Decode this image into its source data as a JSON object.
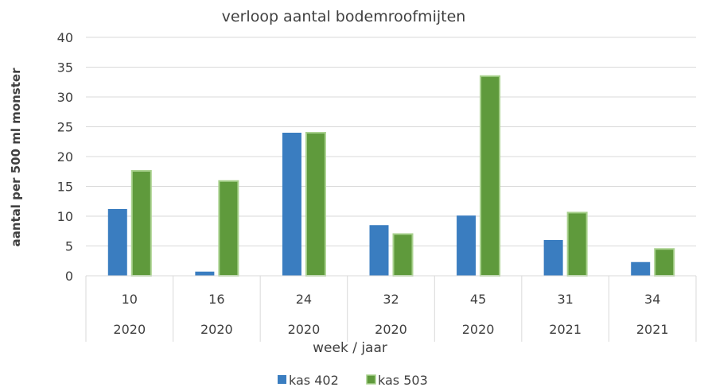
{
  "chart_data": {
    "type": "bar",
    "title": "verloop aantal bodemroofmijten",
    "xlabel": "week / jaar",
    "ylabel": "aantal per 500 ml monster",
    "ylim": [
      0,
      40
    ],
    "yticks": [
      "0",
      "5",
      "10",
      "15",
      "20",
      "25",
      "30",
      "35",
      "40"
    ],
    "grid": true,
    "legend_position": "bottom",
    "categories": [
      {
        "week": "10",
        "year": "2020"
      },
      {
        "week": "16",
        "year": "2020"
      },
      {
        "week": "24",
        "year": "2020"
      },
      {
        "week": "32",
        "year": "2020"
      },
      {
        "week": "45",
        "year": "2020"
      },
      {
        "week": "31",
        "year": "2021"
      },
      {
        "week": "34",
        "year": "2021"
      }
    ],
    "series": [
      {
        "name": "kas 402",
        "color": "#3a7dc0",
        "values": [
          11.2,
          0.7,
          24,
          8.5,
          10.1,
          6,
          2.3
        ]
      },
      {
        "name": "kas 503",
        "color": "#5f9a3c",
        "values": [
          17.6,
          15.9,
          24,
          7,
          33.5,
          10.6,
          4.5
        ]
      }
    ]
  }
}
